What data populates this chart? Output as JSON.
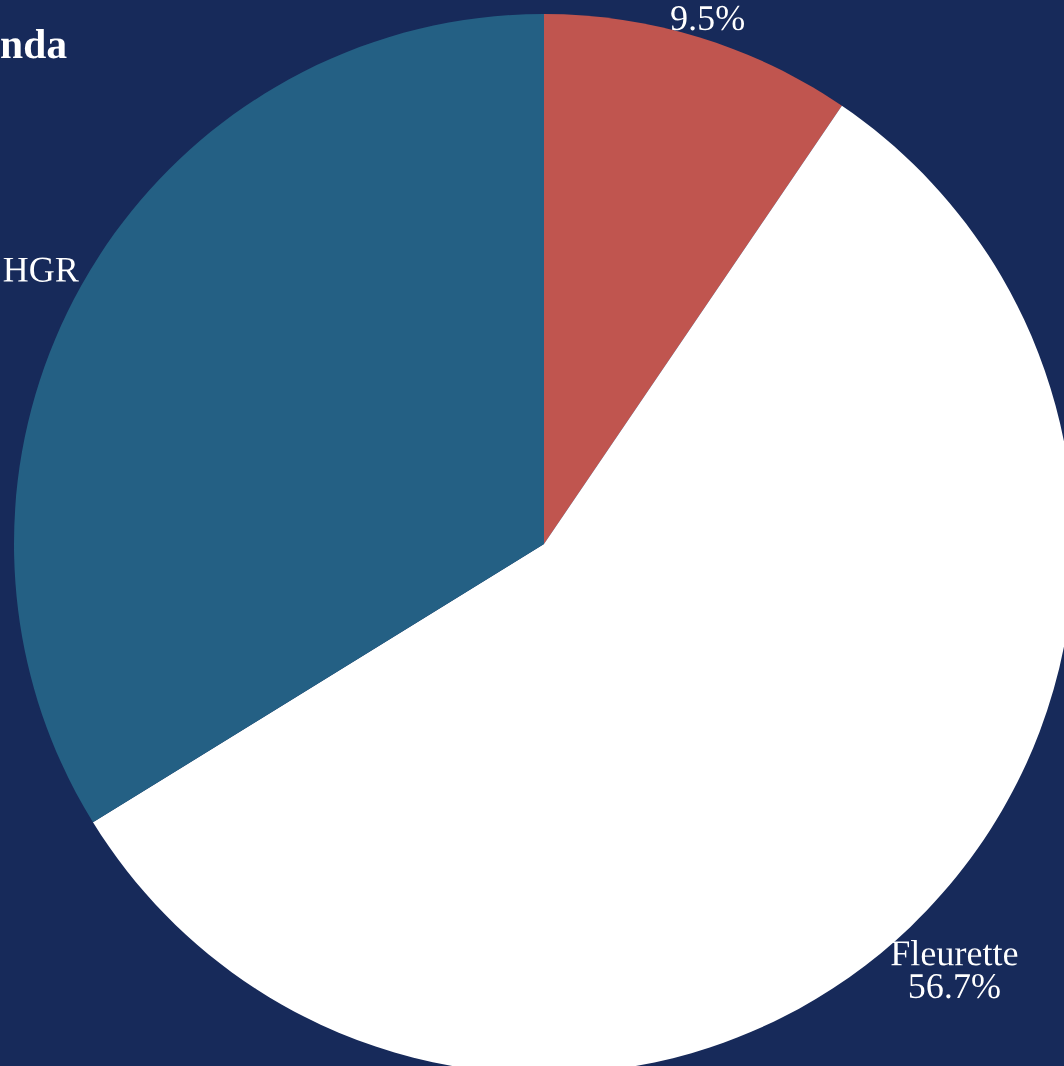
{
  "chart_data": {
    "type": "pie",
    "legend_title": "nda",
    "categories": [
      null,
      "Fleurette",
      "HGR"
    ],
    "values": [
      9.5,
      56.7,
      33.8
    ],
    "value_labels": [
      "9.5%",
      "56.7%",
      null
    ],
    "colors": [
      "#c0554f",
      "#ffffff",
      "#246084"
    ]
  }
}
